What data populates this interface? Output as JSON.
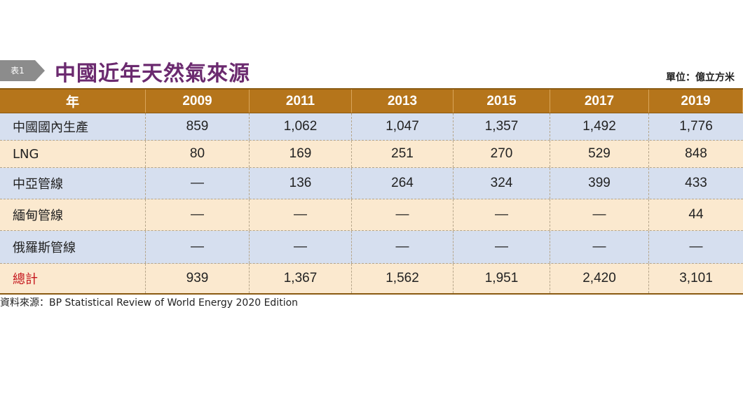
{
  "badge": {
    "label": "表1"
  },
  "title": "中國近年天然氣來源",
  "unit": "單位：億立方米",
  "table": {
    "header": [
      "年",
      "2009",
      "2011",
      "2013",
      "2015",
      "2017",
      "2019"
    ],
    "rows": [
      {
        "label": "中國國內生產",
        "values": [
          "859",
          "1,062",
          "1,047",
          "1,357",
          "1,492",
          "1,776"
        ]
      },
      {
        "label": "LNG",
        "values": [
          "80",
          "169",
          "251",
          "270",
          "529",
          "848"
        ]
      },
      {
        "label": "中亞管線",
        "values": [
          "—",
          "136",
          "264",
          "324",
          "399",
          "433"
        ]
      },
      {
        "label": "緬甸管線",
        "values": [
          "—",
          "—",
          "—",
          "—",
          "—",
          "44"
        ]
      },
      {
        "label": "俄羅斯管線",
        "values": [
          "—",
          "—",
          "—",
          "—",
          "—",
          "—"
        ]
      }
    ],
    "total": {
      "label": "總計",
      "values": [
        "939",
        "1,367",
        "1,562",
        "1,951",
        "2,420",
        "3,101"
      ]
    }
  },
  "source": "資料來源：BP Statistical Review of World Energy 2020 Edition",
  "colors": {
    "header_bg": "#b5751b",
    "row_blue": "#d6dfef",
    "row_cream": "#fbe9cf",
    "title": "#6b2a6f",
    "total_label": "#c4151c"
  }
}
